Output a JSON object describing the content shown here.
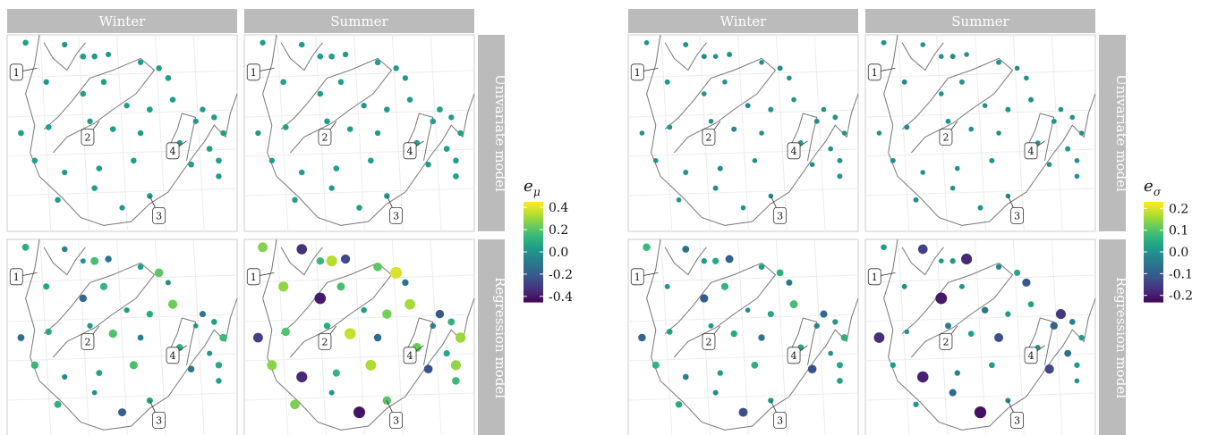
{
  "chart_data": [
    {
      "type": "scatter",
      "facet_columns": [
        "Winter",
        "Summer"
      ],
      "facet_rows": [
        "Univariate model",
        "Regression model"
      ],
      "legend": {
        "title": "e",
        "subscript": "μ",
        "position": "right",
        "range": [
          -0.45,
          0.45
        ],
        "ticks": [
          0.4,
          0.2,
          0.0,
          -0.2,
          -0.4
        ],
        "tick_labels": [
          "0.4",
          "0.2",
          "0.0",
          "-0.2",
          "-0.4"
        ]
      },
      "colormap": "viridis",
      "landmarks": [
        "1",
        "2",
        "3",
        "4"
      ],
      "panels": [
        {
          "column": "Winter",
          "row": "Univariate model",
          "values": [
            0.05,
            0.04,
            0.06,
            0.05,
            0.03,
            0.04,
            0.05,
            0.06,
            0.04,
            0.05,
            0.05,
            0.04,
            0.06,
            0.05,
            0.04,
            0.05,
            0.03,
            0.05,
            0.06,
            0.05,
            0.04,
            0.05,
            0.05,
            0.04,
            0.06,
            0.05,
            0.04,
            0.05,
            0.05,
            0.06,
            0.04,
            0.05,
            0.05,
            0.03,
            0.05,
            0.06
          ]
        },
        {
          "column": "Summer",
          "row": "Univariate model",
          "values": [
            0.04,
            0.05,
            0.05,
            0.06,
            0.04,
            0.05,
            0.05,
            0.04,
            0.06,
            0.05,
            0.05,
            0.04,
            0.05,
            0.05,
            0.06,
            0.04,
            0.05,
            0.05,
            0.04,
            0.06,
            0.05,
            0.05,
            0.04,
            0.05,
            0.06,
            0.04,
            0.05,
            0.05,
            0.05,
            0.04,
            0.06,
            0.05,
            0.04,
            0.05,
            0.05,
            0.05
          ]
        },
        {
          "column": "Winter",
          "row": "Regression model",
          "values": [
            0.12,
            -0.05,
            0.02,
            0.18,
            -0.1,
            0.05,
            0.22,
            -0.02,
            0.08,
            0.14,
            -0.15,
            0.03,
            0.1,
            0.25,
            -0.08,
            0.06,
            0.0,
            0.16,
            -0.12,
            0.09,
            0.04,
            0.2,
            -0.06,
            0.11,
            0.02,
            0.15,
            -0.03,
            0.07,
            0.19,
            -0.1,
            0.05,
            0.13,
            0.01,
            -0.18,
            0.08,
            0.1
          ]
        },
        {
          "column": "Summer",
          "row": "Regression model",
          "values": [
            0.28,
            -0.32,
            0.15,
            0.35,
            -0.25,
            0.22,
            0.4,
            -0.1,
            0.3,
            0.18,
            -0.38,
            0.05,
            0.26,
            0.33,
            -0.2,
            0.12,
            -0.05,
            0.31,
            -0.28,
            0.2,
            0.1,
            0.37,
            -0.15,
            0.24,
            0.08,
            0.29,
            -0.35,
            0.14,
            0.34,
            -0.22,
            0.16,
            0.27,
            0.02,
            -0.4,
            0.21,
            0.3
          ]
        }
      ]
    },
    {
      "type": "scatter",
      "facet_columns": [
        "Winter",
        "Summer"
      ],
      "facet_rows": [
        "Univariate model",
        "Regression model"
      ],
      "legend": {
        "title": "e",
        "subscript": "σ",
        "position": "right",
        "range": [
          -0.23,
          0.23
        ],
        "ticks": [
          0.2,
          0.1,
          0.0,
          -0.1,
          -0.2
        ],
        "tick_labels": [
          "0.2",
          "0.1",
          "0.0",
          "-0.1",
          "-0.2"
        ]
      },
      "colormap": "viridis",
      "landmarks": [
        "1",
        "2",
        "3",
        "4"
      ],
      "panels": [
        {
          "column": "Winter",
          "row": "Univariate model",
          "values": [
            0.0,
            0.01,
            -0.01,
            0.0,
            0.01,
            0.0,
            -0.01,
            0.0,
            0.01,
            0.0,
            0.0,
            -0.01,
            0.01,
            0.0,
            0.0,
            0.01,
            -0.01,
            0.0,
            0.0,
            0.01,
            0.0,
            -0.01,
            0.0,
            0.01,
            0.0,
            0.0,
            0.01,
            -0.01,
            0.0,
            0.0,
            0.01,
            0.0,
            -0.01,
            0.0,
            0.0,
            0.01
          ]
        },
        {
          "column": "Summer",
          "row": "Univariate model",
          "values": [
            0.01,
            0.0,
            0.0,
            -0.01,
            0.0,
            0.01,
            0.0,
            0.0,
            -0.01,
            0.01,
            0.0,
            0.0,
            0.01,
            -0.01,
            0.0,
            0.0,
            0.01,
            0.0,
            0.0,
            -0.01,
            0.01,
            0.0,
            0.0,
            0.0,
            0.01,
            -0.01,
            0.0,
            0.0,
            0.01,
            0.0,
            0.0,
            -0.01,
            0.0,
            0.01,
            0.0,
            0.0
          ]
        },
        {
          "column": "Winter",
          "row": "Regression model",
          "values": [
            0.08,
            -0.06,
            0.02,
            0.05,
            -0.09,
            0.03,
            0.06,
            -0.04,
            0.01,
            0.07,
            -0.1,
            0.0,
            0.04,
            0.09,
            -0.07,
            0.02,
            -0.02,
            0.06,
            -0.08,
            0.03,
            0.01,
            0.05,
            -0.05,
            0.04,
            0.0,
            0.07,
            -0.03,
            0.02,
            0.06,
            -0.11,
            0.03,
            0.05,
            -0.01,
            -0.12,
            0.02,
            0.04
          ]
        },
        {
          "column": "Summer",
          "row": "Regression model",
          "values": [
            0.03,
            -0.14,
            0.0,
            0.02,
            -0.18,
            -0.02,
            0.04,
            -0.1,
            -0.01,
            0.01,
            -0.2,
            -0.05,
            0.02,
            0.03,
            -0.15,
            -0.03,
            -0.08,
            0.02,
            -0.17,
            0.0,
            -0.04,
            0.03,
            -0.12,
            0.01,
            -0.06,
            0.02,
            -0.19,
            -0.02,
            0.03,
            -0.13,
            0.0,
            0.02,
            -0.07,
            -0.21,
            -0.01,
            0.02
          ]
        }
      ]
    }
  ]
}
